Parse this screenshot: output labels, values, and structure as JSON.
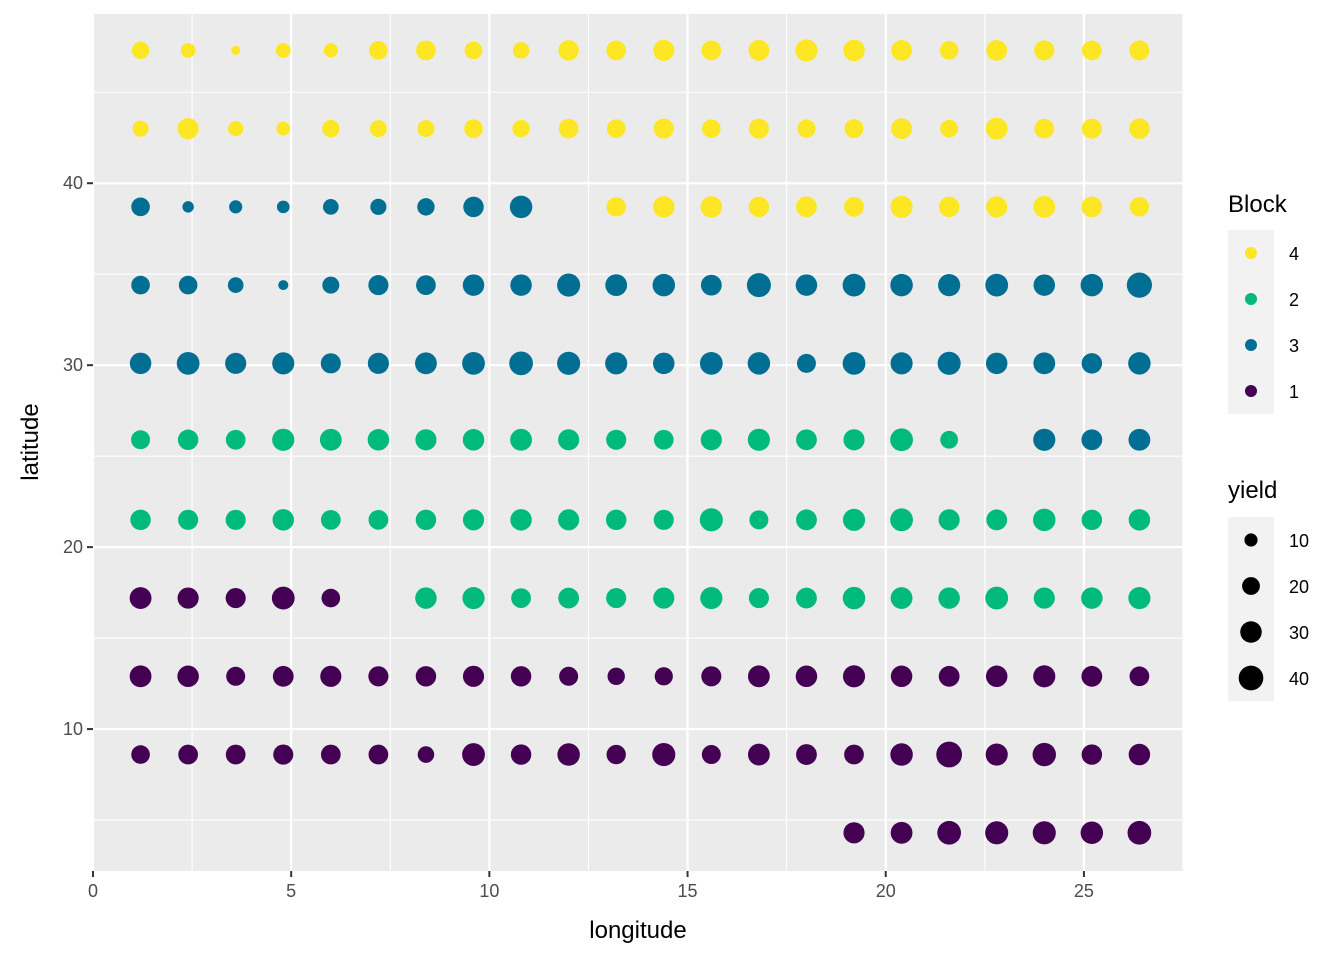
{
  "chart_data": {
    "type": "scatter",
    "title": "",
    "xlabel": "longitude",
    "ylabel": "latitude",
    "xlim": [
      0,
      27.5
    ],
    "ylim": [
      2.2,
      49.3
    ],
    "x_ticks": [
      0,
      5,
      10,
      15,
      20,
      25
    ],
    "y_ticks": [
      10,
      20,
      30,
      40
    ],
    "grid": true,
    "legend_position": "right",
    "color_legend": {
      "title": "Block",
      "entries": [
        {
          "label": "4",
          "color": "#fde725"
        },
        {
          "label": "2",
          "color": "#00ba7c"
        },
        {
          "label": "3",
          "color": "#006f93"
        },
        {
          "label": "1",
          "color": "#440154"
        }
      ]
    },
    "size_legend": {
      "title": "yield",
      "entries": [
        {
          "label": "10",
          "value": 10
        },
        {
          "label": "20",
          "value": 20
        },
        {
          "label": "30",
          "value": 30
        },
        {
          "label": "40",
          "value": 40
        }
      ]
    },
    "x": [
      1.2,
      2.4,
      3.6,
      4.8,
      6.0,
      7.2,
      8.4,
      9.6,
      10.8,
      12.0,
      13.2,
      14.4,
      15.6,
      16.8,
      18.0,
      19.2,
      20.4,
      21.6,
      22.8,
      24.0,
      25.2,
      26.4
    ],
    "rows": [
      {
        "latitude": 47.3,
        "blocks": [
          "4",
          "4",
          "4",
          "4",
          "4",
          "4",
          "4",
          "4",
          "4",
          "4",
          "4",
          "4",
          "4",
          "4",
          "4",
          "4",
          "4",
          "4",
          "4",
          "4",
          "4",
          "4"
        ],
        "yields": [
          19,
          13,
          4,
          13,
          12,
          22,
          25,
          20,
          17,
          27,
          25,
          29,
          25,
          28,
          32,
          30,
          28,
          22,
          28,
          26,
          25,
          26
        ]
      },
      {
        "latitude": 43.0,
        "blocks": [
          "4",
          "4",
          "4",
          "4",
          "4",
          "4",
          "4",
          "4",
          "4",
          "4",
          "4",
          "4",
          "4",
          "4",
          "4",
          "4",
          "4",
          "4",
          "4",
          "4",
          "4",
          "4"
        ],
        "yields": [
          16,
          29,
          14,
          11,
          19,
          18,
          18,
          22,
          19,
          25,
          22,
          26,
          22,
          26,
          21,
          23,
          28,
          20,
          31,
          25,
          26,
          27
        ]
      },
      {
        "latitude": 38.7,
        "blocks": [
          "3",
          "3",
          "3",
          "3",
          "3",
          "3",
          "3",
          "3",
          "3",
          null,
          "4",
          "4",
          "4",
          "4",
          "4",
          "4",
          "4",
          "4",
          "4",
          "4",
          "4",
          "4"
        ],
        "yields": [
          22,
          7,
          10,
          9,
          15,
          16,
          19,
          27,
          33,
          null,
          24,
          30,
          30,
          27,
          28,
          25,
          32,
          27,
          29,
          31,
          28,
          24
        ]
      },
      {
        "latitude": 34.4,
        "blocks": [
          "3",
          "3",
          "3",
          "3",
          "3",
          "3",
          "3",
          "3",
          "3",
          "3",
          "3",
          "3",
          "3",
          "3",
          "3",
          "3",
          "3",
          "3",
          "3",
          "3",
          "3",
          "3"
        ],
        "yields": [
          22,
          22,
          15,
          5,
          18,
          26,
          25,
          30,
          30,
          35,
          31,
          33,
          28,
          38,
          30,
          34,
          33,
          32,
          34,
          30,
          33,
          42
        ]
      },
      {
        "latitude": 30.1,
        "blocks": [
          "3",
          "3",
          "3",
          "3",
          "3",
          "3",
          "3",
          "3",
          "3",
          "3",
          "3",
          "3",
          "3",
          "3",
          "3",
          "3",
          "3",
          "3",
          "3",
          "3",
          "3",
          "3"
        ],
        "yields": [
          30,
          34,
          29,
          32,
          26,
          29,
          31,
          34,
          37,
          35,
          32,
          30,
          34,
          33,
          23,
          34,
          32,
          35,
          30,
          31,
          27,
          33
        ]
      },
      {
        "latitude": 25.9,
        "blocks": [
          "2",
          "2",
          "2",
          "2",
          "2",
          "2",
          "2",
          "2",
          "2",
          "2",
          "2",
          "2",
          "2",
          "2",
          "2",
          "2",
          "2",
          "2",
          null,
          "3",
          "3",
          "3"
        ],
        "yields": [
          23,
          27,
          25,
          32,
          31,
          30,
          29,
          30,
          31,
          29,
          26,
          25,
          29,
          32,
          28,
          29,
          34,
          20,
          null,
          32,
          28,
          31
        ]
      },
      {
        "latitude": 21.5,
        "blocks": [
          "2",
          "2",
          "2",
          "2",
          "2",
          "2",
          "2",
          "2",
          "2",
          "2",
          "2",
          "2",
          "2",
          "2",
          "2",
          "2",
          "2",
          "2",
          "2",
          "2",
          "2",
          "2"
        ],
        "yields": [
          27,
          26,
          26,
          30,
          25,
          25,
          27,
          29,
          30,
          29,
          27,
          26,
          35,
          23,
          28,
          32,
          34,
          29,
          28,
          33,
          27,
          30
        ]
      },
      {
        "latitude": 17.2,
        "blocks": [
          "1",
          "1",
          "1",
          "1",
          "1",
          null,
          "2",
          "2",
          "2",
          "2",
          "2",
          "2",
          "2",
          "2",
          "2",
          "2",
          "2",
          "2",
          "2",
          "2",
          "2",
          "2"
        ],
        "yields": [
          31,
          29,
          26,
          34,
          22,
          null,
          30,
          32,
          25,
          28,
          26,
          29,
          32,
          26,
          28,
          33,
          31,
          30,
          34,
          29,
          30,
          32
        ]
      },
      {
        "latitude": 12.9,
        "blocks": [
          "1",
          "1",
          "1",
          "1",
          "1",
          "1",
          "1",
          "1",
          "1",
          "1",
          "1",
          "1",
          "1",
          "1",
          "1",
          "1",
          "1",
          "1",
          "1",
          "1",
          "1",
          "1"
        ],
        "yields": [
          31,
          30,
          23,
          28,
          29,
          26,
          27,
          29,
          27,
          23,
          19,
          21,
          26,
          31,
          30,
          32,
          30,
          28,
          30,
          32,
          28,
          25
        ]
      },
      {
        "latitude": 8.6,
        "blocks": [
          "1",
          "1",
          "1",
          "1",
          "1",
          "1",
          "1",
          "1",
          "1",
          "1",
          "1",
          "1",
          "1",
          "1",
          "1",
          "1",
          "1",
          "1",
          "1",
          "1",
          "1",
          "1"
        ],
        "yields": [
          22,
          25,
          25,
          26,
          25,
          25,
          17,
          34,
          27,
          33,
          24,
          35,
          23,
          31,
          28,
          25,
          33,
          44,
          32,
          36,
          27,
          30
        ]
      },
      {
        "latitude": 4.3,
        "blocks": [
          null,
          null,
          null,
          null,
          null,
          null,
          null,
          null,
          null,
          null,
          null,
          null,
          null,
          null,
          null,
          "1",
          "1",
          "1",
          "1",
          "1",
          "1",
          "1"
        ],
        "yields": [
          null,
          null,
          null,
          null,
          null,
          null,
          null,
          null,
          null,
          null,
          null,
          null,
          null,
          null,
          null,
          29,
          31,
          37,
          35,
          35,
          33,
          37
        ]
      }
    ]
  }
}
